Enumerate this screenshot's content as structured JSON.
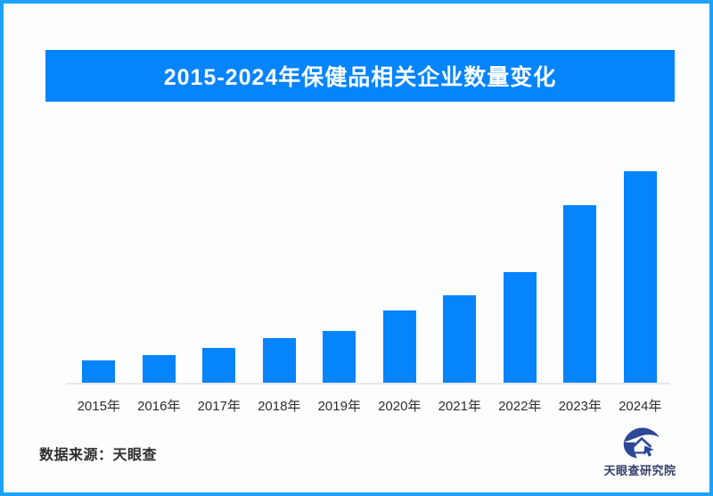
{
  "frame": {
    "border_color": "#1ea1fd",
    "background": "#fcfefd"
  },
  "title": {
    "text": "2015-2024年保健品相关企业数量变化",
    "bg_color": "#0584fc",
    "text_color": "#ffffff"
  },
  "chart_data": {
    "type": "bar",
    "title": "2015-2024年保健品相关企业数量变化",
    "categories": [
      "2015年",
      "2016年",
      "2017年",
      "2018年",
      "2019年",
      "2020年",
      "2021年",
      "2022年",
      "2023年",
      "2024年"
    ],
    "values": [
      11,
      13.5,
      17,
      21.5,
      25,
      34.5,
      41.5,
      52.5,
      84,
      100
    ],
    "units": "relative index (no y-axis or data labels shown; tallest 2024 bar = 100)",
    "bar_color": "#0584fc",
    "axis_line_color": "#e8e9e9",
    "xlabel": "",
    "ylabel": "",
    "ylim": [
      0,
      100
    ],
    "grid": false,
    "legend": false
  },
  "footer": {
    "source_label": "数据来源：天眼查",
    "logo_text": "天眼查研究院",
    "logo_color": "#2c4796",
    "logo_icon": "tianyancha-eye-logo"
  }
}
